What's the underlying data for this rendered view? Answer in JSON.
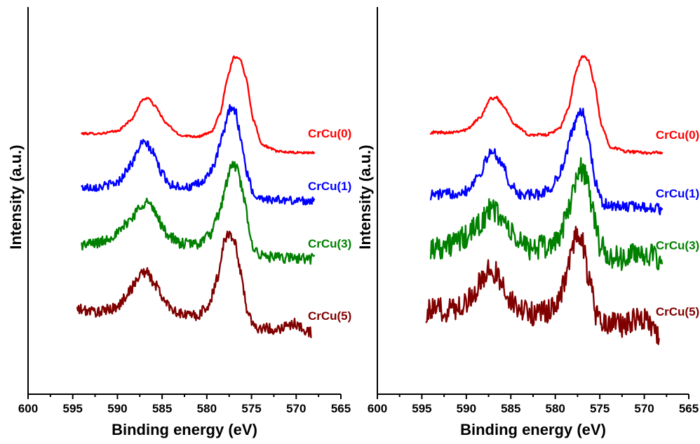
{
  "chart_data": [
    {
      "type": "line",
      "xlabel": "Binding energy (eV)",
      "ylabel": "Intensity (a.u.)",
      "xlim": [
        600,
        565
      ],
      "x_ticks": [
        600,
        595,
        590,
        585,
        580,
        575,
        570,
        565
      ],
      "y_ticks_shown": false,
      "series": [
        {
          "name": "CrCu(0)",
          "color": "#ff0000",
          "noise": 0.003,
          "points": [
            [
              594,
              1.12
            ],
            [
              592,
              1.12
            ],
            [
              590,
              1.16
            ],
            [
              588.5,
              1.34
            ],
            [
              587.2,
              1.68
            ],
            [
              586.6,
              1.72
            ],
            [
              585.8,
              1.58
            ],
            [
              584.5,
              1.28
            ],
            [
              583,
              1.09
            ],
            [
              581,
              1.07
            ],
            [
              579.5,
              1.14
            ],
            [
              578.5,
              1.45
            ],
            [
              577.7,
              2.05
            ],
            [
              577,
              2.4
            ],
            [
              576.3,
              2.38
            ],
            [
              575.6,
              2.05
            ],
            [
              574.8,
              1.35
            ],
            [
              573.8,
              0.93
            ],
            [
              572,
              0.82
            ],
            [
              570,
              0.8
            ],
            [
              568,
              0.8
            ]
          ]
        },
        {
          "name": "CrCu(1)",
          "color": "#0000ff",
          "noise": 0.012,
          "points": [
            [
              594,
              0.22
            ],
            [
              592,
              0.23
            ],
            [
              590,
              0.3
            ],
            [
              588.5,
              0.6
            ],
            [
              587.3,
              0.95
            ],
            [
              586.8,
              0.96
            ],
            [
              586,
              0.8
            ],
            [
              585,
              0.45
            ],
            [
              584,
              0.26
            ],
            [
              582,
              0.22
            ],
            [
              580.5,
              0.3
            ],
            [
              579.2,
              0.58
            ],
            [
              578.2,
              1.1
            ],
            [
              577.4,
              1.55
            ],
            [
              576.8,
              1.5
            ],
            [
              576.2,
              1.05
            ],
            [
              575.5,
              0.45
            ],
            [
              574.7,
              0.08
            ],
            [
              573,
              0.02
            ],
            [
              570,
              0.0
            ],
            [
              568,
              0.0
            ]
          ]
        },
        {
          "name": "CrCu(3)",
          "color": "#008000",
          "noise": 0.015,
          "points": [
            [
              594,
              -0.74
            ],
            [
              592,
              -0.7
            ],
            [
              590,
              -0.55
            ],
            [
              588.5,
              -0.3
            ],
            [
              587.2,
              -0.05
            ],
            [
              586.6,
              -0.02
            ],
            [
              585.8,
              -0.2
            ],
            [
              584.5,
              -0.55
            ],
            [
              583,
              -0.72
            ],
            [
              581,
              -0.72
            ],
            [
              579.5,
              -0.55
            ],
            [
              578.6,
              -0.2
            ],
            [
              577.8,
              0.3
            ],
            [
              577.2,
              0.6
            ],
            [
              576.6,
              0.55
            ],
            [
              575.8,
              0.0
            ],
            [
              575,
              -0.72
            ],
            [
              574,
              -0.92
            ],
            [
              572,
              -0.96
            ],
            [
              570,
              -0.96
            ],
            [
              568,
              -0.97
            ]
          ]
        },
        {
          "name": "CrCu(5)",
          "color": "#800000",
          "noise": 0.015,
          "points": [
            [
              594.5,
              -1.82
            ],
            [
              592,
              -1.86
            ],
            [
              590,
              -1.78
            ],
            [
              588.5,
              -1.48
            ],
            [
              587.3,
              -1.2
            ],
            [
              586.7,
              -1.2
            ],
            [
              585.8,
              -1.4
            ],
            [
              584.5,
              -1.72
            ],
            [
              583,
              -1.9
            ],
            [
              581,
              -1.92
            ],
            [
              579.8,
              -1.75
            ],
            [
              578.8,
              -1.3
            ],
            [
              578.1,
              -0.7
            ],
            [
              577.6,
              -0.55
            ],
            [
              577,
              -0.62
            ],
            [
              576.2,
              -1.2
            ],
            [
              575.4,
              -1.9
            ],
            [
              574.5,
              -2.12
            ],
            [
              572.5,
              -2.15
            ],
            [
              571,
              -2.1
            ],
            [
              570.3,
              -2.05
            ],
            [
              569.3,
              -2.14
            ],
            [
              568.3,
              -2.2
            ]
          ]
        }
      ]
    },
    {
      "type": "line",
      "xlabel": "Binding energy (eV)",
      "ylabel": "Intensity (a.u.)",
      "xlim": [
        600,
        565
      ],
      "x_ticks": [
        600,
        595,
        590,
        585,
        580,
        575,
        570,
        565
      ],
      "y_ticks_shown": false,
      "series": [
        {
          "name": "CrCu(0)",
          "color": "#ff0000",
          "noise": 0.004,
          "points": [
            [
              594,
              1.14
            ],
            [
              592,
              1.14
            ],
            [
              590,
              1.18
            ],
            [
              588.5,
              1.38
            ],
            [
              587.3,
              1.7
            ],
            [
              586.6,
              1.72
            ],
            [
              585.8,
              1.58
            ],
            [
              584.5,
              1.26
            ],
            [
              583,
              1.1
            ],
            [
              581,
              1.1
            ],
            [
              579.5,
              1.2
            ],
            [
              578.5,
              1.55
            ],
            [
              577.7,
              2.15
            ],
            [
              577,
              2.42
            ],
            [
              576.3,
              2.35
            ],
            [
              575.6,
              1.95
            ],
            [
              574.8,
              1.25
            ],
            [
              573.8,
              0.9
            ],
            [
              572,
              0.82
            ],
            [
              570,
              0.8
            ],
            [
              568,
              0.8
            ]
          ]
        },
        {
          "name": "CrCu(1)",
          "color": "#0000ff",
          "noise": 0.015,
          "points": [
            [
              594,
              0.1
            ],
            [
              592,
              0.11
            ],
            [
              590,
              0.17
            ],
            [
              588.5,
              0.45
            ],
            [
              587.3,
              0.8
            ],
            [
              586.8,
              0.8
            ],
            [
              586,
              0.62
            ],
            [
              585,
              0.25
            ],
            [
              584,
              0.1
            ],
            [
              582,
              0.1
            ],
            [
              580.5,
              0.2
            ],
            [
              579.2,
              0.55
            ],
            [
              578.2,
              1.1
            ],
            [
              577.4,
              1.5
            ],
            [
              576.8,
              1.45
            ],
            [
              576.2,
              0.95
            ],
            [
              575.5,
              0.3
            ],
            [
              574.7,
              -0.05
            ],
            [
              573,
              -0.1
            ],
            [
              570,
              -0.1
            ],
            [
              568,
              -0.15
            ]
          ]
        },
        {
          "name": "CrCu(3)",
          "color": "#008000",
          "noise": 0.035,
          "points": [
            [
              594,
              -0.78
            ],
            [
              592,
              -0.75
            ],
            [
              590,
              -0.62
            ],
            [
              588.5,
              -0.38
            ],
            [
              587.2,
              -0.15
            ],
            [
              586.6,
              -0.18
            ],
            [
              585.8,
              -0.35
            ],
            [
              584.5,
              -0.65
            ],
            [
              583,
              -0.78
            ],
            [
              581,
              -0.78
            ],
            [
              579.5,
              -0.6
            ],
            [
              578.6,
              -0.2
            ],
            [
              577.8,
              0.3
            ],
            [
              577.2,
              0.55
            ],
            [
              576.6,
              0.45
            ],
            [
              575.8,
              -0.15
            ],
            [
              575,
              -0.75
            ],
            [
              574,
              -0.95
            ],
            [
              572,
              -0.98
            ],
            [
              571,
              -0.88
            ],
            [
              570.3,
              -0.85
            ],
            [
              569,
              -0.95
            ],
            [
              568,
              -1.12
            ]
          ]
        },
        {
          "name": "CrCu(5)",
          "color": "#800000",
          "noise": 0.035,
          "points": [
            [
              594.5,
              -1.85
            ],
            [
              592,
              -1.82
            ],
            [
              590,
              -1.7
            ],
            [
              588.5,
              -1.4
            ],
            [
              587.3,
              -1.15
            ],
            [
              586.7,
              -1.2
            ],
            [
              585.8,
              -1.45
            ],
            [
              584.5,
              -1.78
            ],
            [
              583,
              -1.88
            ],
            [
              581,
              -1.88
            ],
            [
              579.8,
              -1.7
            ],
            [
              578.8,
              -1.3
            ],
            [
              578.1,
              -0.75
            ],
            [
              577.6,
              -0.6
            ],
            [
              577,
              -0.7
            ],
            [
              576.2,
              -1.3
            ],
            [
              575.4,
              -1.92
            ],
            [
              574.5,
              -2.05
            ],
            [
              572.5,
              -2.08
            ],
            [
              571,
              -1.98
            ],
            [
              570.3,
              -1.95
            ],
            [
              569.3,
              -2.05
            ],
            [
              568.3,
              -2.25
            ]
          ]
        }
      ]
    }
  ]
}
